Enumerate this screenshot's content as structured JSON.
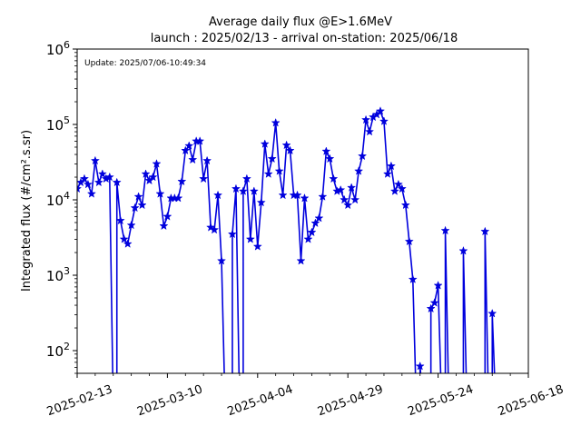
{
  "chart_data": {
    "type": "line",
    "title": "Average daily flux @E>1.6MeV",
    "subtitle": "launch : 2025/02/13 - arrival on-station: 2025/06/18",
    "annotation": "Update: 2025/07/06-10:49:34",
    "ylabel": "Integrated flux (#/cm².s.sr)",
    "yscale": "log",
    "ylim": [
      50,
      1000000
    ],
    "xlim": [
      "2025-02-13",
      "2025-06-18"
    ],
    "x_ticks": [
      "2025-02-13",
      "2025-03-10",
      "2025-04-04",
      "2025-04-29",
      "2025-05-24",
      "2025-06-18"
    ],
    "y_ticks": [
      {
        "value": 100,
        "base": "10",
        "exp": "2"
      },
      {
        "value": 1000,
        "base": "10",
        "exp": "3"
      },
      {
        "value": 10000,
        "base": "10",
        "exp": "4"
      },
      {
        "value": 100000,
        "base": "10",
        "exp": "5"
      },
      {
        "value": 1000000,
        "base": "10",
        "exp": "6"
      }
    ],
    "grid": false,
    "marker": "star",
    "color": "#0000dd",
    "series": [
      {
        "x": [
          "2025-02-13",
          "2025-02-14",
          "2025-02-15",
          "2025-02-16",
          "2025-02-17",
          "2025-02-18",
          "2025-02-19",
          "2025-02-20",
          "2025-02-21",
          "2025-02-22",
          "2025-02-23",
          "2025-02-24",
          "2025-02-25",
          "2025-02-26",
          "2025-02-27",
          "2025-02-28",
          "2025-03-01",
          "2025-03-02",
          "2025-03-03",
          "2025-03-04",
          "2025-03-05",
          "2025-03-06",
          "2025-03-07",
          "2025-03-08",
          "2025-03-09",
          "2025-03-10",
          "2025-03-11",
          "2025-03-12",
          "2025-03-13",
          "2025-03-14",
          "2025-03-15",
          "2025-03-16",
          "2025-03-17",
          "2025-03-18",
          "2025-03-19",
          "2025-03-20",
          "2025-03-21",
          "2025-03-22",
          "2025-03-23",
          "2025-03-24",
          "2025-03-25",
          "2025-03-26",
          "2025-03-27",
          "2025-03-28",
          "2025-03-29",
          "2025-03-30",
          "2025-03-31",
          "2025-04-01",
          "2025-04-02",
          "2025-04-03",
          "2025-04-04",
          "2025-04-05",
          "2025-04-06",
          "2025-04-07",
          "2025-04-08",
          "2025-04-09",
          "2025-04-10",
          "2025-04-11",
          "2025-04-12",
          "2025-04-13",
          "2025-04-14",
          "2025-04-15",
          "2025-04-16",
          "2025-04-17",
          "2025-04-18",
          "2025-04-19",
          "2025-04-20",
          "2025-04-21",
          "2025-04-22",
          "2025-04-23",
          "2025-04-24",
          "2025-04-25",
          "2025-04-26",
          "2025-04-27",
          "2025-04-28",
          "2025-04-29",
          "2025-04-30",
          "2025-05-01",
          "2025-05-02",
          "2025-05-03",
          "2025-05-04",
          "2025-05-05",
          "2025-05-06",
          "2025-05-07",
          "2025-05-08",
          "2025-05-09",
          "2025-05-10",
          "2025-05-11",
          "2025-05-12",
          "2025-05-13",
          "2025-05-14",
          "2025-05-15",
          "2025-05-16",
          "2025-05-17",
          "2025-05-18",
          "2025-05-19",
          "2025-05-20",
          "2025-05-21",
          "2025-05-22",
          "2025-05-23",
          "2025-05-24",
          "2025-05-25",
          "2025-05-26",
          "2025-05-27",
          "2025-05-28",
          "2025-05-29",
          "2025-05-30",
          "2025-05-31",
          "2025-06-01",
          "2025-06-02",
          "2025-06-03",
          "2025-06-04",
          "2025-06-05",
          "2025-06-06",
          "2025-06-07",
          "2025-06-08",
          "2025-06-09",
          "2025-06-10"
        ],
        "y": [
          14000,
          17000,
          19000,
          16000,
          12000,
          33000,
          17000,
          22000,
          19000,
          20000,
          null,
          17000,
          5300,
          3000,
          2600,
          4600,
          7800,
          11000,
          8500,
          22000,
          18000,
          20000,
          30000,
          12000,
          4500,
          6000,
          10500,
          10500,
          10500,
          17500,
          45000,
          52000,
          34000,
          60000,
          60000,
          19000,
          33000,
          4300,
          4000,
          11500,
          1550,
          null,
          null,
          3500,
          14000,
          null,
          13000,
          19000,
          3000,
          13000,
          2400,
          9200,
          55000,
          22000,
          35000,
          105000,
          24000,
          11500,
          53000,
          45000,
          11500,
          11500,
          1550,
          10500,
          3000,
          3700,
          4900,
          5700,
          11000,
          44000,
          35000,
          19000,
          13000,
          13500,
          10000,
          8500,
          14500,
          10000,
          24000,
          38000,
          115000,
          80000,
          125000,
          135000,
          150000,
          110000,
          22000,
          28000,
          13000,
          16000,
          14000,
          8500,
          2800,
          880,
          null,
          62,
          null,
          null,
          360,
          430,
          730,
          null,
          3900,
          null,
          null,
          null,
          null,
          2100,
          null,
          null,
          null,
          null,
          null,
          3800,
          null,
          310,
          null,
          null
        ]
      }
    ]
  }
}
